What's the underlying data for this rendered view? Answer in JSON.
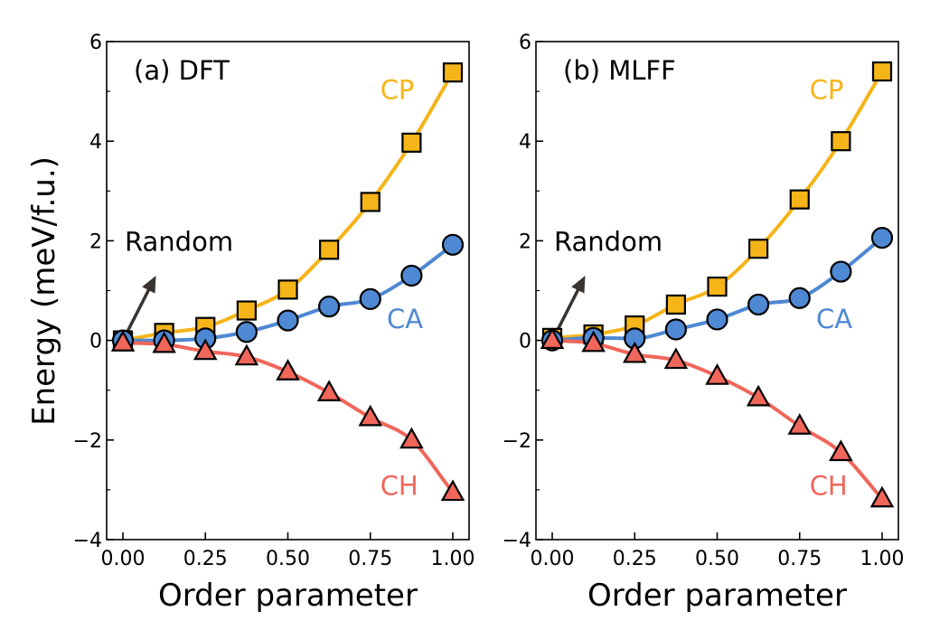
{
  "chart_data": {
    "type": "scatter",
    "ylabel": "Energy (meV/f.u.)",
    "xlabel": "Order parameter",
    "xlim": [
      0,
      1
    ],
    "ylim": [
      -4,
      6
    ],
    "xticks": [
      "0.00",
      "0.25",
      "0.50",
      "0.75",
      "1.00"
    ],
    "yticks": [
      "−4",
      "−2",
      "0",
      "2",
      "4",
      "6"
    ],
    "grid": false,
    "colors": {
      "CP": "#F5B418",
      "CA": "#4F88D3",
      "CH": "#F0665A"
    },
    "annotation": "Random",
    "panels": [
      {
        "title": "(a) DFT",
        "series": [
          {
            "name": "CP",
            "marker": "square",
            "x": [
              0,
              0.125,
              0.25,
              0.375,
              0.5,
              0.625,
              0.75,
              0.875,
              1.0
            ],
            "values": [
              0.0,
              0.15,
              0.27,
              0.6,
              1.02,
              1.82,
              2.78,
              3.97,
              5.38
            ]
          },
          {
            "name": "CA",
            "marker": "circle",
            "x": [
              0,
              0.125,
              0.25,
              0.375,
              0.5,
              0.625,
              0.75,
              0.875,
              1.0
            ],
            "values": [
              0.0,
              0.0,
              0.04,
              0.17,
              0.4,
              0.68,
              0.83,
              1.3,
              1.92
            ]
          },
          {
            "name": "CH",
            "marker": "triangle",
            "x": [
              0,
              0.125,
              0.25,
              0.375,
              0.5,
              0.625,
              0.75,
              0.875,
              1.0
            ],
            "values": [
              -0.05,
              -0.08,
              -0.22,
              -0.33,
              -0.63,
              -1.05,
              -1.55,
              -2.0,
              -3.05
            ]
          }
        ]
      },
      {
        "title": "(b) MLFF",
        "series": [
          {
            "name": "CP",
            "marker": "square",
            "x": [
              0,
              0.125,
              0.25,
              0.375,
              0.5,
              0.625,
              0.75,
              0.875,
              1.0
            ],
            "values": [
              0.05,
              0.12,
              0.3,
              0.72,
              1.08,
              1.84,
              2.83,
              4.0,
              5.4
            ]
          },
          {
            "name": "CA",
            "marker": "circle",
            "x": [
              0,
              0.125,
              0.25,
              0.375,
              0.5,
              0.625,
              0.75,
              0.875,
              1.0
            ],
            "values": [
              0.0,
              0.05,
              0.04,
              0.22,
              0.42,
              0.72,
              0.85,
              1.38,
              2.06
            ]
          },
          {
            "name": "CH",
            "marker": "triangle",
            "x": [
              0,
              0.125,
              0.25,
              0.375,
              0.5,
              0.625,
              0.75,
              0.875,
              1.0
            ],
            "values": [
              0.0,
              -0.06,
              -0.28,
              -0.4,
              -0.72,
              -1.15,
              -1.72,
              -2.25,
              -3.18
            ]
          }
        ]
      }
    ]
  }
}
